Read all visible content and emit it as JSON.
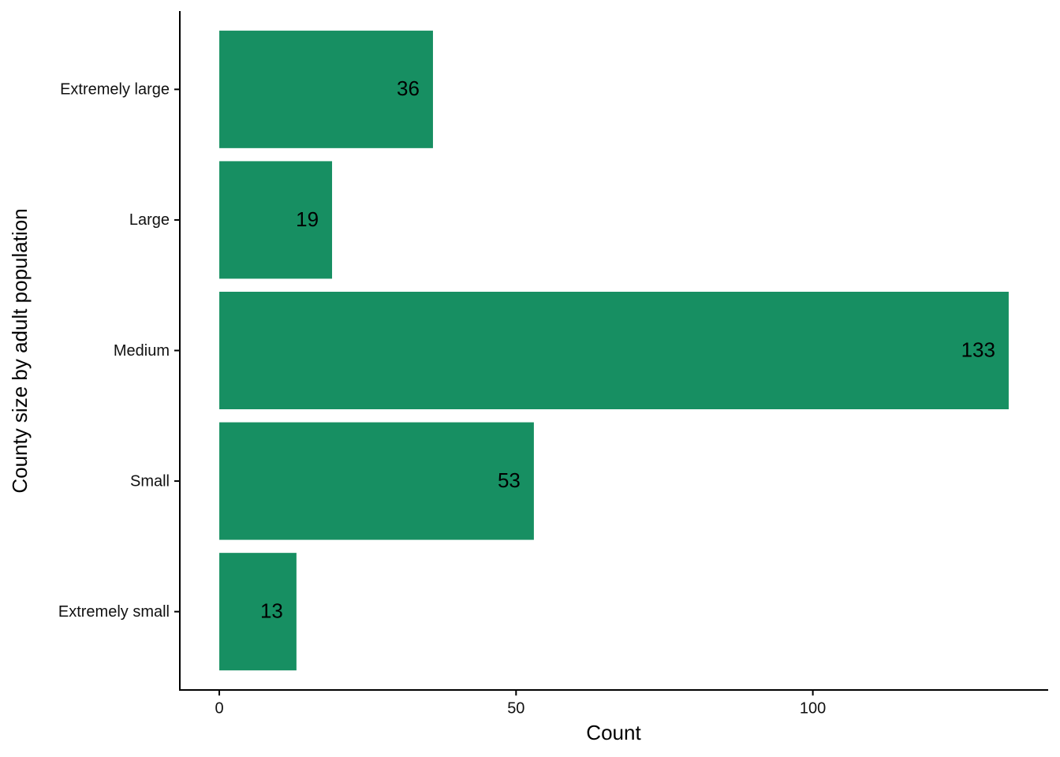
{
  "chart_data": {
    "type": "bar",
    "orientation": "horizontal",
    "x_label": "Count",
    "y_label": "County size by adult population",
    "categories": [
      "Extremely large",
      "Large",
      "Medium",
      "Small",
      "Extremely small"
    ],
    "values": [
      36,
      19,
      133,
      53,
      13
    ],
    "color": "#178f62",
    "xlim": [
      -6.65,
      139.65
    ],
    "xticks": [
      0,
      50,
      100
    ],
    "grid": false
  }
}
